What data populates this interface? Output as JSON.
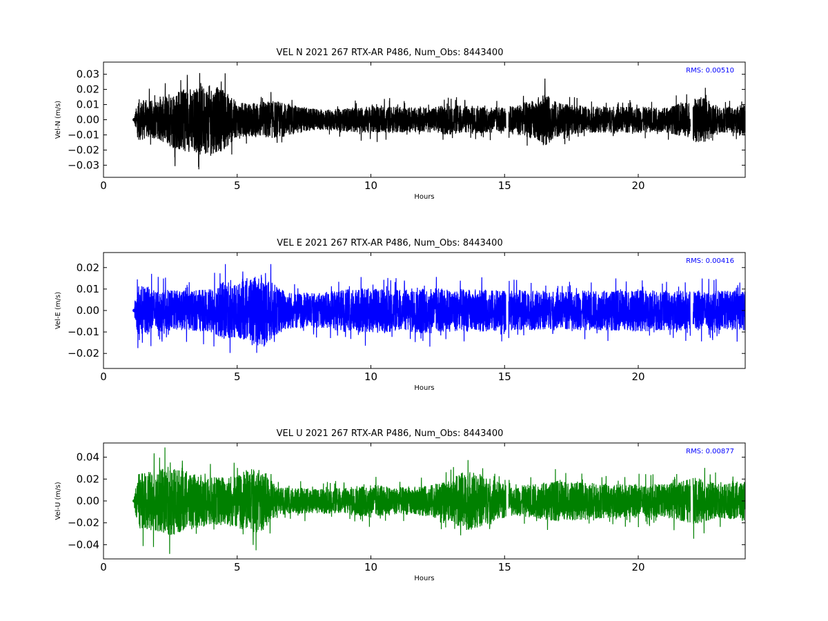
{
  "chart_data": [
    {
      "type": "line",
      "title": "VEL N 2021 267 RTX-AR  P486, Num_Obs: 8443400",
      "xlabel": "Hours",
      "ylabel": "Vel-N (m/s)",
      "xlim": [
        0,
        24
      ],
      "ylim": [
        -0.038,
        0.038
      ],
      "xticks": [
        0,
        5,
        10,
        15,
        20
      ],
      "xtick_labels": [
        "0",
        "5",
        "10",
        "15",
        "20"
      ],
      "yticks": [
        -0.03,
        -0.02,
        -0.01,
        0.0,
        0.01,
        0.02,
        0.03
      ],
      "ytick_labels": [
        "−0.03",
        "−0.02",
        "−0.01",
        "0.00",
        "0.01",
        "0.02",
        "0.03"
      ],
      "rms_text": "RMS:  0.00510",
      "color": "#000000",
      "grid": false,
      "series": [
        {
          "x": [
            1.15,
            1.3,
            2.0,
            2.5,
            3.0,
            3.5,
            4.0,
            4.5,
            5.0,
            5.5,
            6.0,
            6.5,
            7.0,
            8.0,
            9.0,
            10.0,
            11.0,
            12.0,
            13.0,
            14.0,
            15.0,
            15.2,
            16.0,
            16.5,
            17.0,
            18.0,
            19.0,
            20.0,
            21.0,
            21.9,
            22.1,
            22.5,
            23.0,
            23.5,
            24.0
          ],
          "y_envelope": [
            0.004,
            0.022,
            0.02,
            0.03,
            0.034,
            0.035,
            0.037,
            0.033,
            0.018,
            0.018,
            0.02,
            0.02,
            0.016,
            0.011,
            0.012,
            0.015,
            0.014,
            0.013,
            0.016,
            0.015,
            0.013,
            0.015,
            0.02,
            0.028,
            0.018,
            0.014,
            0.014,
            0.014,
            0.013,
            0.02,
            0.024,
            0.024,
            0.014,
            0.014,
            0.017
          ]
        }
      ]
    },
    {
      "type": "line",
      "title": "VEL E 2021 267 RTX-AR  P486, Num_Obs: 8443400",
      "xlabel": "Hours",
      "ylabel": "Vel-E (m/s)",
      "xlim": [
        0,
        24
      ],
      "ylim": [
        -0.027,
        0.027
      ],
      "xticks": [
        0,
        5,
        10,
        15,
        20
      ],
      "xtick_labels": [
        "0",
        "5",
        "10",
        "15",
        "20"
      ],
      "yticks": [
        -0.02,
        -0.01,
        0.0,
        0.01,
        0.02
      ],
      "ytick_labels": [
        "−0.02",
        "−0.01",
        "0.00",
        "0.01",
        "0.02"
      ],
      "rms_text": "RMS:  0.00416",
      "color": "#0000ff",
      "grid": false,
      "series": [
        {
          "x": [
            1.15,
            1.3,
            2.0,
            3.0,
            4.0,
            4.5,
            5.0,
            5.5,
            6.0,
            6.5,
            7.0,
            8.0,
            9.0,
            10.0,
            11.0,
            12.0,
            13.0,
            14.0,
            15.0,
            15.2,
            16.0,
            17.0,
            18.0,
            19.0,
            20.0,
            21.0,
            21.9,
            22.1,
            23.0,
            24.0
          ],
          "y_envelope": [
            0.005,
            0.02,
            0.016,
            0.015,
            0.016,
            0.022,
            0.02,
            0.026,
            0.027,
            0.018,
            0.014,
            0.013,
            0.016,
            0.017,
            0.016,
            0.018,
            0.016,
            0.016,
            0.015,
            0.015,
            0.015,
            0.014,
            0.015,
            0.015,
            0.016,
            0.015,
            0.015,
            0.015,
            0.015,
            0.015
          ]
        }
      ]
    },
    {
      "type": "line",
      "title": "VEL U 2021 267 RTX-AR  P486, Num_Obs: 8443400",
      "xlabel": "Hours",
      "ylabel": "Vel-U (m/s)",
      "xlim": [
        0,
        24
      ],
      "ylim": [
        -0.053,
        0.053
      ],
      "xticks": [
        0,
        5,
        10,
        15,
        20
      ],
      "xtick_labels": [
        "0",
        "5",
        "10",
        "15",
        "20"
      ],
      "yticks": [
        -0.04,
        -0.02,
        0.0,
        0.02,
        0.04
      ],
      "ytick_labels": [
        "−0.04",
        "−0.02",
        "0.00",
        "0.02",
        "0.04"
      ],
      "rms_text": "RMS:  0.00877",
      "color": "#008000",
      "grid": false,
      "series": [
        {
          "x": [
            1.15,
            1.3,
            2.0,
            2.5,
            3.0,
            3.5,
            4.0,
            5.0,
            5.5,
            6.0,
            6.5,
            7.0,
            8.0,
            9.0,
            10.0,
            11.0,
            12.0,
            13.0,
            13.5,
            14.0,
            15.0,
            15.2,
            16.0,
            17.0,
            18.0,
            19.0,
            20.0,
            21.0,
            21.9,
            22.1,
            23.0,
            24.0
          ],
          "y_envelope": [
            0.008,
            0.04,
            0.045,
            0.052,
            0.045,
            0.04,
            0.035,
            0.04,
            0.048,
            0.045,
            0.02,
            0.02,
            0.018,
            0.02,
            0.025,
            0.02,
            0.022,
            0.03,
            0.045,
            0.04,
            0.025,
            0.02,
            0.025,
            0.03,
            0.028,
            0.025,
            0.025,
            0.025,
            0.032,
            0.035,
            0.025,
            0.03
          ]
        }
      ]
    }
  ]
}
